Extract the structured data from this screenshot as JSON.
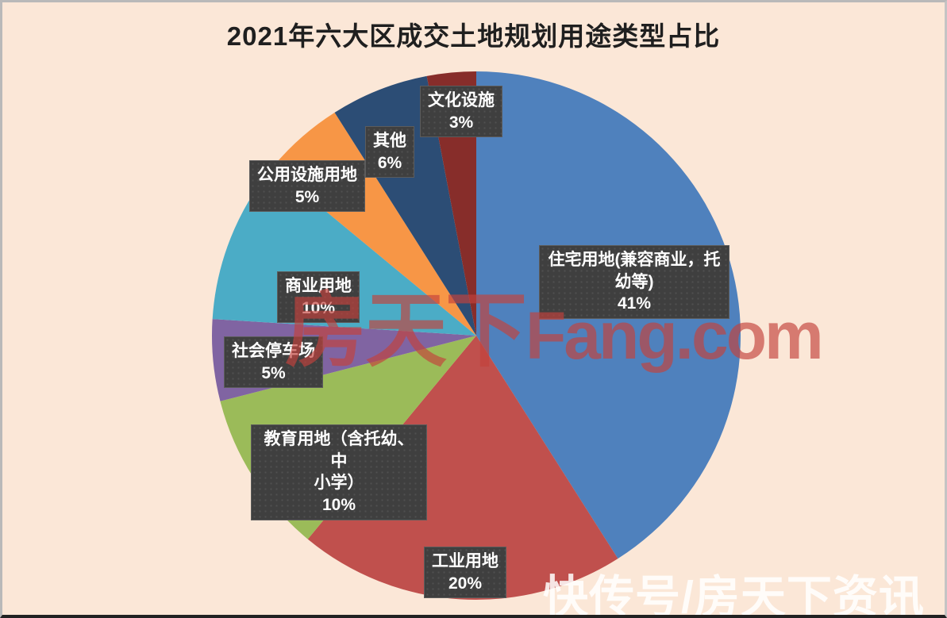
{
  "page": {
    "background": "#FBE7D7",
    "border_color": "#B9B9B9"
  },
  "title": {
    "text": "2021年六大区成交土地规划用途类型占比"
  },
  "watermarks": {
    "center_cn": "房天下",
    "center_en": "Fang.com",
    "bottom_right": "快传号/房天下资讯",
    "center_color": "#C4423C",
    "bottom_color": "#FFFFFF"
  },
  "chart_data": {
    "type": "pie",
    "title": "2021年六大区成交土地规划用途类型占比",
    "start_angle_deg": 0,
    "direction": "clockwise",
    "legend_position": "none",
    "label_style": "dark-boxes-with-dot-pattern",
    "slices": [
      {
        "label": "住宅用地(兼容商业，托幼等)",
        "lines": [
          "住宅用地(兼容商业，托",
          "幼等)"
        ],
        "value": 41,
        "percent_label": "41%",
        "color": "#4F81BD"
      },
      {
        "label": "工业用地",
        "lines": [
          "工业用地"
        ],
        "value": 20,
        "percent_label": "20%",
        "color": "#C0504D"
      },
      {
        "label": "教育用地（含托幼、中小学）",
        "lines": [
          "教育用地（含托幼、中",
          "小学）"
        ],
        "value": 10,
        "percent_label": "10%",
        "color": "#9BBB59"
      },
      {
        "label": "社会停车场",
        "lines": [
          "社会停车场"
        ],
        "value": 5,
        "percent_label": "5%",
        "color": "#8064A2"
      },
      {
        "label": "商业用地",
        "lines": [
          "商业用地"
        ],
        "value": 10,
        "percent_label": "10%",
        "color": "#4BACC6"
      },
      {
        "label": "公用设施用地",
        "lines": [
          "公用设施用地"
        ],
        "value": 5,
        "percent_label": "5%",
        "color": "#F79646"
      },
      {
        "label": "其他",
        "lines": [
          "其他"
        ],
        "value": 6,
        "percent_label": "6%",
        "color": "#2C4D75"
      },
      {
        "label": "文化设施",
        "lines": [
          "文化设施"
        ],
        "value": 3,
        "percent_label": "3%",
        "color": "#872D2A"
      }
    ]
  }
}
